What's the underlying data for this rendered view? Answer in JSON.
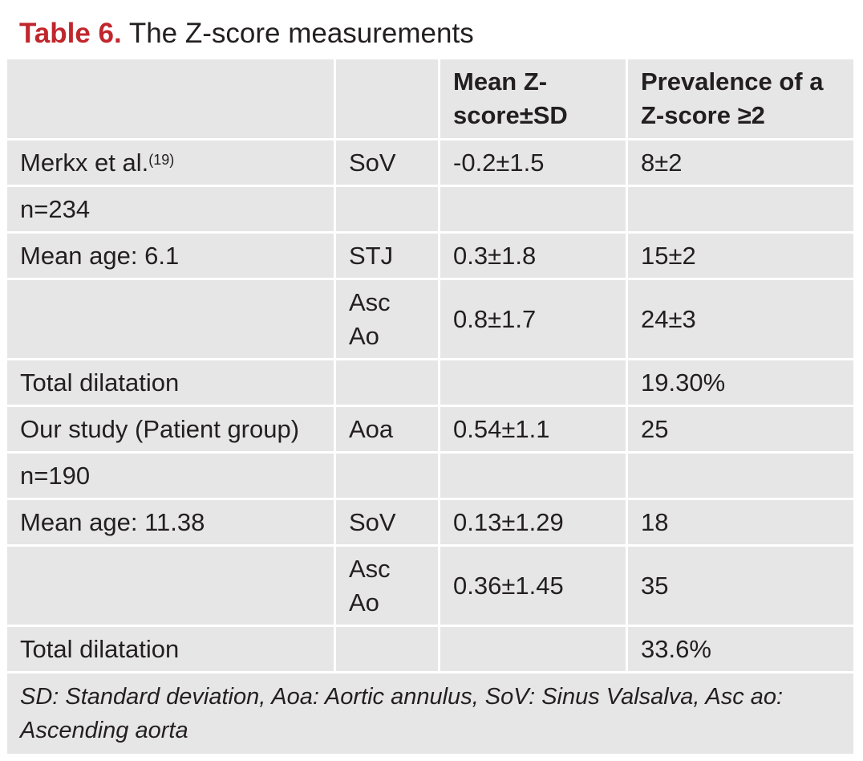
{
  "caption": {
    "label": "Table 6.",
    "title": "The Z-score measurements"
  },
  "table": {
    "headers": [
      "",
      "",
      "Mean Z-score±SD",
      "Prevalence of a Z-score ≥2"
    ],
    "rows": [
      {
        "col1": "Merkx et al.",
        "ref": "(19)",
        "col2": "SoV",
        "col3": "-0.2±1.5",
        "col4": "8±2"
      },
      {
        "col1": "n=234",
        "col2": "",
        "col3": "",
        "col4": ""
      },
      {
        "col1": "Mean age: 6.1",
        "col2": "STJ",
        "col3": "0.3±1.8",
        "col4": "15±2"
      },
      {
        "col1": "",
        "col2": "Asc Ao",
        "col3": "0.8±1.7",
        "col4": "24±3"
      },
      {
        "col1": "Total dilatation",
        "col2": "",
        "col3": "",
        "col4": "19.30%"
      },
      {
        "col1": "Our study (Patient group)",
        "col2": "Aoa",
        "col3": "0.54±1.1",
        "col4": "25"
      },
      {
        "col1": "n=190",
        "col2": "",
        "col3": "",
        "col4": ""
      },
      {
        "col1": "Mean age: 11.38",
        "col2": "SoV",
        "col3": "0.13±1.29",
        "col4": "18"
      },
      {
        "col1": "",
        "col2": "Asc Ao",
        "col3": "0.36±1.45",
        "col4": "35"
      },
      {
        "col1": "Total dilatation",
        "col2": "",
        "col3": "",
        "col4": "33.6%"
      }
    ],
    "footnote": "SD: Standard deviation, Aoa: Aortic annulus, SoV: Sinus Valsalva, Asc ao: Ascending aorta"
  }
}
